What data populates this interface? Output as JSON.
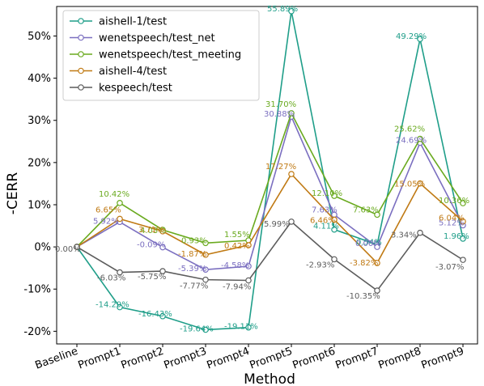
{
  "chart_data": {
    "type": "line",
    "xlabel": "Method",
    "ylabel": "-CERR",
    "categories": [
      "Baseline",
      "Prompt1",
      "Prompt2",
      "Prompt3",
      "Prompt4",
      "Prompt5",
      "Prompt6",
      "Prompt7",
      "Prompt8",
      "Prompt9"
    ],
    "y_ticks": [
      "-20%",
      "-10%",
      "0%",
      "10%",
      "20%",
      "30%",
      "40%",
      "50%"
    ],
    "y_tick_values": [
      -20,
      -10,
      0,
      10,
      20,
      30,
      40,
      50
    ],
    "ylim": [
      -23,
      57
    ],
    "legend_position": "top-left",
    "grid": false,
    "series": [
      {
        "name": "aishell-1/test",
        "color": "#1f9e89",
        "values": [
          0,
          -14.29,
          -16.43,
          -19.64,
          -19.11,
          55.89,
          4.11,
          0.54,
          49.29,
          1.96
        ],
        "labels": [
          "",
          "-14.29%",
          "-16.43%",
          "-19.64%",
          "-19.11%",
          "55.89%",
          "4.11%",
          "0.54%",
          "49.29%",
          "1.96%"
        ]
      },
      {
        "name": "wenetspeech/test_net",
        "color": "#7b6fc0",
        "values": [
          0,
          5.92,
          -0.09,
          -5.39,
          -4.58,
          30.88,
          7.63,
          0.0,
          24.69,
          5.12
        ],
        "labels": [
          "",
          "5.92%",
          "-0.09%",
          "-5.39%",
          "-4.58%",
          "30.88%",
          "7.63%",
          "0.00%",
          "24.69%",
          "5.12%"
        ]
      },
      {
        "name": "wenetspeech/test_meeting",
        "color": "#6aaa1f",
        "values": [
          0,
          10.42,
          4.03,
          0.93,
          1.55,
          31.7,
          12.1,
          7.63,
          25.62,
          10.36
        ],
        "labels": [
          "",
          "10.42%",
          "4.03%",
          "0.93%",
          "1.55%",
          "31.70%",
          "12.10%",
          "7.63%",
          "25.62%",
          "10.36%"
        ]
      },
      {
        "name": "aishell-4/test",
        "color": "#c07a14",
        "values": [
          0,
          6.65,
          3.71,
          -1.87,
          0.42,
          17.27,
          6.46,
          -3.82,
          15.05,
          6.04
        ],
        "labels": [
          "",
          "6.65%",
          "3.71%",
          "-1.87%",
          "0.42%",
          "17.27%",
          "6.46%",
          "-3.82%",
          "15.05%",
          "6.04%"
        ]
      },
      {
        "name": "kespeech/test",
        "color": "#5c5c5c",
        "values": [
          0,
          -6.03,
          -5.75,
          -7.77,
          -7.94,
          5.99,
          -2.93,
          -10.35,
          3.34,
          -3.07
        ],
        "labels": [
          "0.00%",
          "-6.03%",
          "-5.75%",
          "-7.77%",
          "-7.94%",
          "5.99%",
          "-2.93%",
          "-10.35%",
          "3.34%",
          "-3.07%"
        ]
      }
    ]
  }
}
